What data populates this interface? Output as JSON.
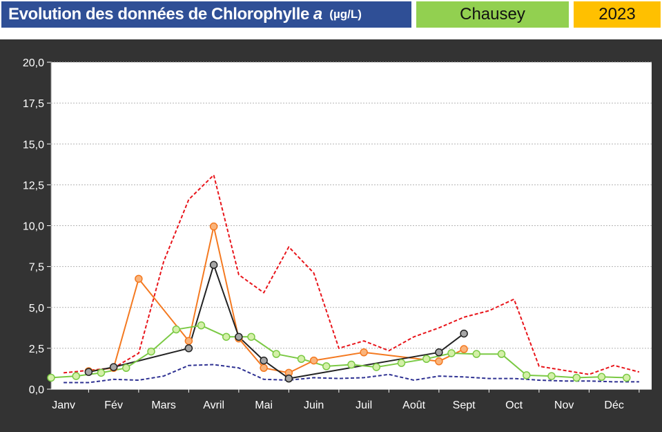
{
  "header": {
    "title_main": "Evolution des données de Chlorophylle",
    "title_italic": "a",
    "title_unit": "(µg/L)",
    "site": "Chausey",
    "year": "2023"
  },
  "colors": {
    "title_bg": "#2f4f96",
    "site_bg": "#92d050",
    "year_bg": "#ffc000",
    "chart_bg": "#333333",
    "plot_bg": "#ffffff"
  },
  "chart_data": {
    "type": "line",
    "y_ticks": [
      "0,0",
      "2,5",
      "5,0",
      "7,5",
      "10,0",
      "12,5",
      "15,0",
      "17,5",
      "20,0"
    ],
    "ylim": [
      0,
      20
    ],
    "grid": true,
    "x_ticks": [
      {
        "label": "Janv",
        "x": 1
      },
      {
        "label": "Fév",
        "x": 2
      },
      {
        "label": "Mars",
        "x": 3
      },
      {
        "label": "Avril",
        "x": 4
      },
      {
        "label": "Mai",
        "x": 5
      },
      {
        "label": "Juin",
        "x": 6
      },
      {
        "label": "Juil",
        "x": 7
      },
      {
        "label": "Août",
        "x": 8
      },
      {
        "label": "Sept",
        "x": 9
      },
      {
        "label": "Oct",
        "x": 10
      },
      {
        "label": "Nov",
        "x": 11
      },
      {
        "label": "Déc",
        "x": 12
      }
    ],
    "xlim": [
      0.75,
      12.75
    ],
    "series": [
      {
        "key": "upper-dashed",
        "style": "dashed",
        "color": "#e8141a",
        "markers": false,
        "points": [
          [
            1.0,
            1.0
          ],
          [
            1.5,
            1.15
          ],
          [
            2.0,
            1.3
          ],
          [
            2.5,
            2.2
          ],
          [
            3.0,
            7.8
          ],
          [
            3.5,
            11.6
          ],
          [
            4.0,
            13.1
          ],
          [
            4.5,
            7.0
          ],
          [
            5.0,
            5.9
          ],
          [
            5.5,
            8.7
          ],
          [
            6.0,
            7.1
          ],
          [
            6.5,
            2.5
          ],
          [
            7.0,
            2.95
          ],
          [
            7.5,
            2.35
          ],
          [
            8.0,
            3.2
          ],
          [
            8.5,
            3.75
          ],
          [
            9.0,
            4.4
          ],
          [
            9.5,
            4.8
          ],
          [
            10.0,
            5.5
          ],
          [
            10.5,
            1.4
          ],
          [
            11.0,
            1.15
          ],
          [
            11.5,
            0.9
          ],
          [
            12.0,
            1.45
          ],
          [
            12.5,
            1.05
          ]
        ]
      },
      {
        "key": "lower-dashed",
        "style": "dashed",
        "color": "#2e3192",
        "markers": false,
        "points": [
          [
            1.0,
            0.4
          ],
          [
            1.5,
            0.4
          ],
          [
            2.0,
            0.6
          ],
          [
            2.5,
            0.55
          ],
          [
            3.0,
            0.8
          ],
          [
            3.5,
            1.45
          ],
          [
            4.0,
            1.5
          ],
          [
            4.5,
            1.3
          ],
          [
            5.0,
            0.6
          ],
          [
            5.5,
            0.55
          ],
          [
            6.0,
            0.7
          ],
          [
            6.5,
            0.65
          ],
          [
            7.0,
            0.7
          ],
          [
            7.5,
            0.9
          ],
          [
            8.0,
            0.55
          ],
          [
            8.5,
            0.8
          ],
          [
            9.0,
            0.75
          ],
          [
            9.5,
            0.65
          ],
          [
            10.0,
            0.65
          ],
          [
            10.5,
            0.55
          ],
          [
            11.0,
            0.5
          ],
          [
            11.5,
            0.5
          ],
          [
            12.0,
            0.45
          ],
          [
            12.5,
            0.45
          ]
        ]
      },
      {
        "key": "orange",
        "style": "solid",
        "color": "#f47920",
        "fill": "#f9b47c",
        "markers": true,
        "points": [
          [
            1.5,
            1.1
          ],
          [
            2.0,
            1.3
          ],
          [
            2.5,
            6.75
          ],
          [
            3.5,
            2.95
          ],
          [
            4.0,
            9.95
          ],
          [
            4.5,
            3.1
          ],
          [
            5.0,
            1.3
          ],
          [
            5.5,
            1.0
          ],
          [
            6.0,
            1.75
          ],
          [
            7.0,
            2.25
          ],
          [
            8.5,
            1.7
          ],
          [
            9.0,
            2.45
          ]
        ]
      },
      {
        "key": "black",
        "style": "solid",
        "color": "#222222",
        "fill": "#a6a6a6",
        "markers": true,
        "points": [
          [
            1.5,
            1.05
          ],
          [
            2.0,
            1.35
          ],
          [
            3.5,
            2.5
          ],
          [
            4.0,
            7.6
          ],
          [
            4.5,
            3.2
          ],
          [
            5.0,
            1.75
          ],
          [
            5.5,
            0.65
          ],
          [
            8.5,
            2.25
          ],
          [
            9.0,
            3.4
          ]
        ]
      },
      {
        "key": "green",
        "style": "solid",
        "color": "#7ac943",
        "fill": "#d4f0a8",
        "markers": true,
        "points": [
          [
            0.75,
            0.7
          ],
          [
            1.25,
            0.8
          ],
          [
            1.75,
            1.0
          ],
          [
            2.25,
            1.3
          ],
          [
            2.75,
            2.3
          ],
          [
            3.25,
            3.65
          ],
          [
            3.75,
            3.9
          ],
          [
            4.25,
            3.2
          ],
          [
            4.75,
            3.2
          ],
          [
            5.25,
            2.15
          ],
          [
            5.75,
            1.85
          ],
          [
            6.25,
            1.4
          ],
          [
            6.75,
            1.5
          ],
          [
            7.25,
            1.35
          ],
          [
            7.75,
            1.6
          ],
          [
            8.25,
            1.85
          ],
          [
            8.75,
            2.2
          ],
          [
            9.25,
            2.15
          ],
          [
            9.75,
            2.15
          ],
          [
            10.25,
            0.85
          ],
          [
            10.75,
            0.8
          ],
          [
            11.25,
            0.7
          ],
          [
            11.75,
            0.75
          ],
          [
            12.25,
            0.7
          ]
        ]
      }
    ]
  }
}
